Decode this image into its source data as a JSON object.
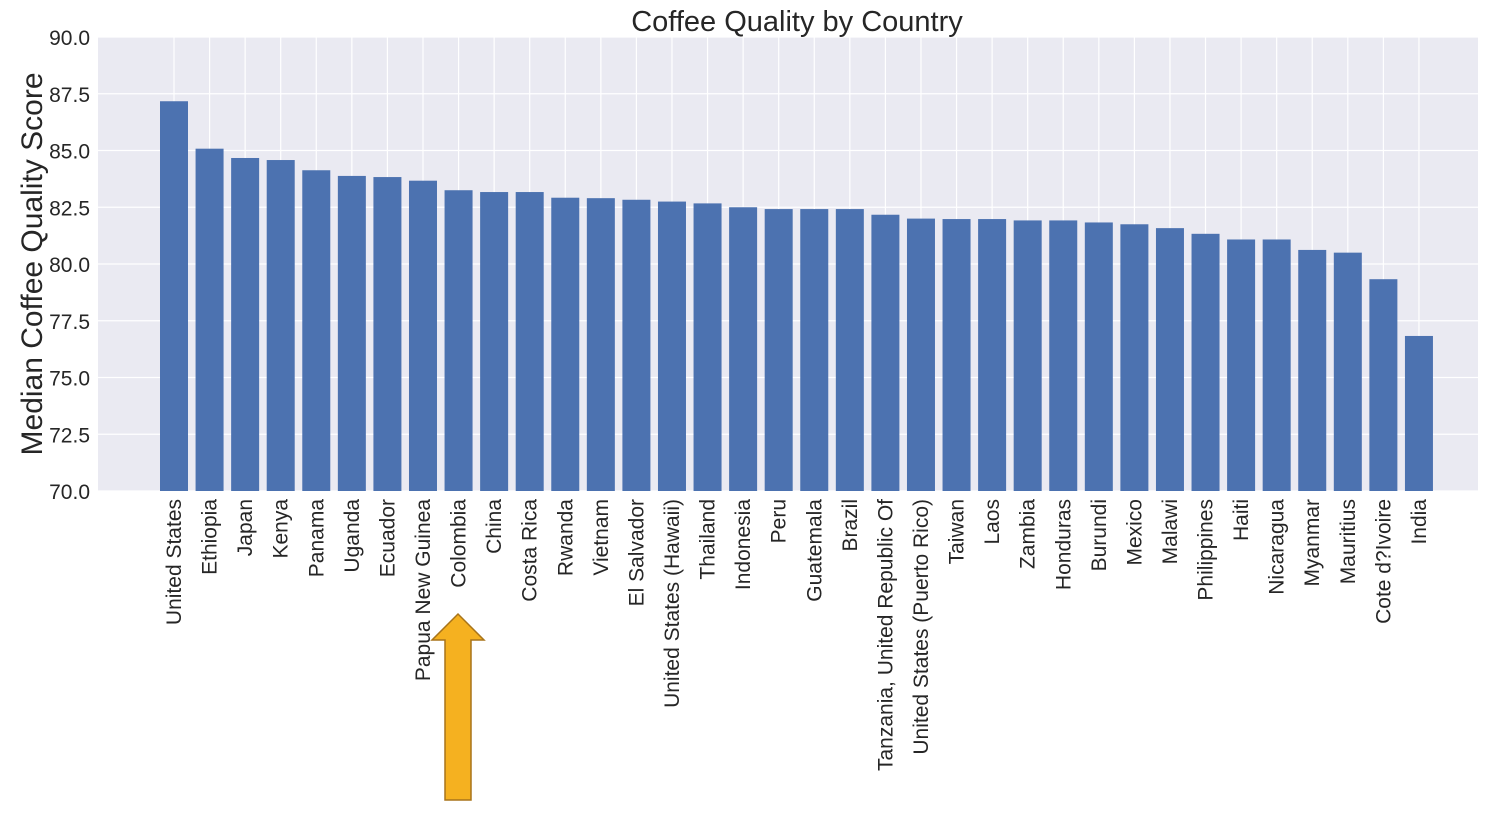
{
  "chart_data": {
    "type": "bar",
    "title": "Coffee Quality by Country",
    "xlabel": "",
    "ylabel": "Median Coffee Quality Score",
    "ylim": [
      70.0,
      90.0
    ],
    "yticks": [
      "70.0",
      "72.5",
      "75.0",
      "77.5",
      "80.0",
      "82.5",
      "85.0",
      "87.5",
      "90.0"
    ],
    "grid": true,
    "categories": [
      "United States",
      "Ethiopia",
      "Japan",
      "Kenya",
      "Panama",
      "Uganda",
      "Ecuador",
      "Papua New Guinea",
      "Colombia",
      "China",
      "Costa Rica",
      "Rwanda",
      "Vietnam",
      "El Salvador",
      "United States (Hawaii)",
      "Thailand",
      "Indonesia",
      "Peru",
      "Guatemala",
      "Brazil",
      "Tanzania, United Republic Of",
      "United States (Puerto Rico)",
      "Taiwan",
      "Laos",
      "Zambia",
      "Honduras",
      "Burundi",
      "Mexico",
      "Malawi",
      "Philippines",
      "Haiti",
      "Nicaragua",
      "Myanmar",
      "Mauritius",
      "Cote d?Ivoire",
      "India"
    ],
    "values": [
      87.17,
      85.08,
      84.67,
      84.58,
      84.13,
      83.88,
      83.83,
      83.67,
      83.25,
      83.17,
      83.17,
      82.92,
      82.9,
      82.83,
      82.75,
      82.67,
      82.5,
      82.42,
      82.42,
      82.42,
      82.17,
      82.0,
      81.98,
      81.98,
      81.92,
      81.92,
      81.83,
      81.75,
      81.58,
      81.33,
      81.08,
      81.08,
      80.62,
      80.5,
      79.33,
      76.83
    ],
    "highlight": "Colombia",
    "colors": {
      "bar": "#4c72b0",
      "plot_background": "#eaeaf2",
      "grid": "#ffffff",
      "arrow_fill": "#f5b120",
      "arrow_stroke": "#a8741a"
    }
  }
}
